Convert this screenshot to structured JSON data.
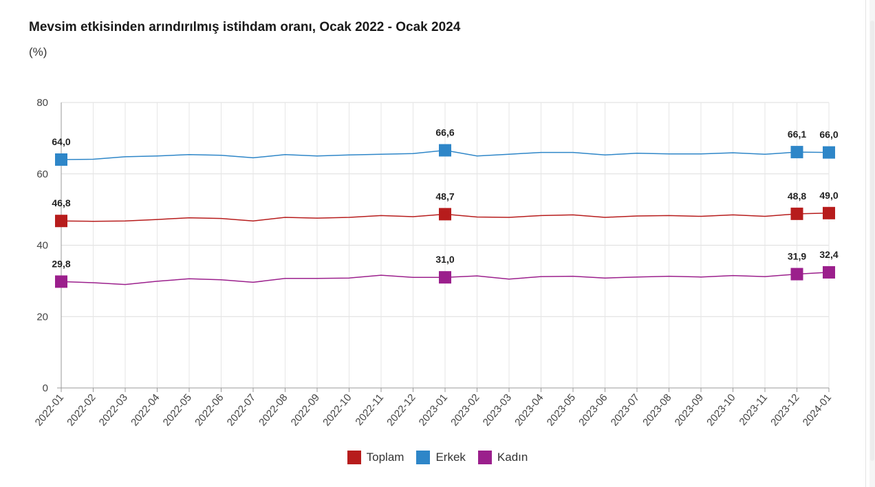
{
  "chart_data": {
    "type": "line",
    "title": "Mevsim etkisinden arındırılmış istihdam oranı, Ocak 2022 - Ocak 2024",
    "subtitle": "(%)",
    "xlabel": "",
    "ylabel": "",
    "ylim": [
      0,
      80
    ],
    "yticks": [
      "0",
      "20",
      "40",
      "60",
      "80"
    ],
    "grid": true,
    "legend_position": "bottom",
    "categories": [
      "2022-01",
      "2022-02",
      "2022-03",
      "2022-04",
      "2022-05",
      "2022-06",
      "2022-07",
      "2022-08",
      "2022-09",
      "2022-10",
      "2022-11",
      "2022-12",
      "2023-01",
      "2023-02",
      "2023-03",
      "2023-04",
      "2023-05",
      "2023-06",
      "2023-07",
      "2023-08",
      "2023-09",
      "2023-10",
      "2023-11",
      "2023-12",
      "2024-01"
    ],
    "series": [
      {
        "name": "Toplam",
        "color": "#b71c1c",
        "values": [
          46.8,
          46.7,
          46.8,
          47.2,
          47.7,
          47.5,
          46.8,
          47.8,
          47.6,
          47.8,
          48.3,
          48.0,
          48.7,
          47.9,
          47.8,
          48.3,
          48.5,
          47.8,
          48.2,
          48.3,
          48.1,
          48.5,
          48.1,
          48.8,
          49.0
        ],
        "marker_points": [
          0,
          12,
          23,
          24
        ],
        "labels": {
          "0": "46,8",
          "12": "48,7",
          "23": "48,8",
          "24": "49,0"
        }
      },
      {
        "name": "Erkek",
        "color": "#2e86c8",
        "values": [
          64.0,
          64.1,
          64.8,
          65.0,
          65.4,
          65.2,
          64.5,
          65.4,
          65.0,
          65.3,
          65.5,
          65.7,
          66.6,
          65.0,
          65.5,
          66.0,
          66.0,
          65.3,
          65.8,
          65.6,
          65.6,
          65.9,
          65.5,
          66.1,
          66.0
        ],
        "marker_points": [
          0,
          12,
          23,
          24
        ],
        "labels": {
          "0": "64,0",
          "12": "66,6",
          "23": "66,1",
          "24": "66,0"
        }
      },
      {
        "name": "Kadın",
        "color": "#9b1f8c",
        "values": [
          29.8,
          29.5,
          29.0,
          29.9,
          30.6,
          30.3,
          29.6,
          30.7,
          30.7,
          30.8,
          31.6,
          31.0,
          31.0,
          31.4,
          30.5,
          31.2,
          31.3,
          30.8,
          31.1,
          31.3,
          31.1,
          31.5,
          31.2,
          31.9,
          32.4
        ],
        "marker_points": [
          0,
          12,
          23,
          24
        ],
        "labels": {
          "0": "29,8",
          "12": "31,0",
          "23": "31,9",
          "24": "32,4"
        }
      }
    ]
  }
}
